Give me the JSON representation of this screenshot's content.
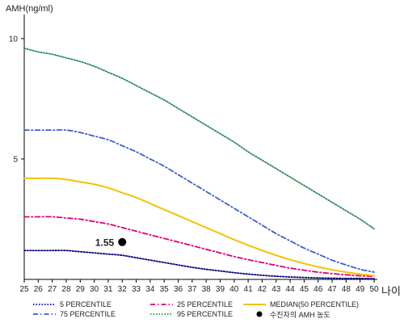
{
  "chart_data": {
    "type": "line",
    "ylabel": "AMH(ng/ml)",
    "xlabel": "나이",
    "x": [
      25,
      26,
      27,
      28,
      29,
      30,
      31,
      32,
      33,
      34,
      35,
      36,
      37,
      38,
      39,
      40,
      41,
      42,
      43,
      44,
      45,
      46,
      47,
      48,
      49,
      50
    ],
    "x_tick_labels": [
      "25",
      "26",
      "27",
      "28",
      "29",
      "30",
      "31",
      "32",
      "33",
      "34",
      "35",
      "36",
      "37",
      "38",
      "39",
      "40",
      "41",
      "42",
      "43",
      "44",
      "45",
      "46",
      "47",
      "48",
      "49",
      "50"
    ],
    "y_ticks": [
      5,
      10
    ],
    "y_tick_labels": [
      "5",
      "10"
    ],
    "xlim": [
      25,
      50
    ],
    "ylim": [
      0,
      11
    ],
    "grid": false,
    "legend_position": "bottom",
    "series": [
      {
        "name": "5 PERCENTILE",
        "color": "#000080",
        "dash": "dotted",
        "values": [
          1.2,
          1.2,
          1.2,
          1.2,
          1.15,
          1.1,
          1.05,
          1.0,
          0.9,
          0.8,
          0.7,
          0.6,
          0.5,
          0.42,
          0.35,
          0.28,
          0.22,
          0.17,
          0.13,
          0.1,
          0.08,
          0.06,
          0.05,
          0.04,
          0.04,
          0.03
        ]
      },
      {
        "name": "25 PERCENTILE",
        "color": "#e0007a",
        "dash": "dashdot",
        "values": [
          2.6,
          2.6,
          2.6,
          2.55,
          2.5,
          2.4,
          2.3,
          2.15,
          2.0,
          1.85,
          1.7,
          1.55,
          1.4,
          1.25,
          1.1,
          0.95,
          0.82,
          0.7,
          0.58,
          0.47,
          0.38,
          0.3,
          0.24,
          0.19,
          0.15,
          0.12
        ]
      },
      {
        "name": "MEDIAN(50 PERCENTILE)",
        "color": "#f2c200",
        "dash": "solid",
        "values": [
          4.2,
          4.2,
          4.2,
          4.15,
          4.05,
          3.95,
          3.8,
          3.6,
          3.4,
          3.15,
          2.9,
          2.65,
          2.4,
          2.15,
          1.9,
          1.65,
          1.42,
          1.2,
          1.0,
          0.82,
          0.66,
          0.52,
          0.4,
          0.3,
          0.22,
          0.15
        ]
      },
      {
        "name": "75 PERCENTILE",
        "color": "#3a5fcd",
        "dash": "dashdot",
        "values": [
          6.2,
          6.2,
          6.2,
          6.2,
          6.1,
          5.95,
          5.8,
          5.55,
          5.3,
          5.0,
          4.7,
          4.35,
          4.0,
          3.65,
          3.3,
          2.95,
          2.6,
          2.25,
          1.9,
          1.6,
          1.3,
          1.05,
          0.8,
          0.6,
          0.42,
          0.3
        ]
      },
      {
        "name": "95 PERCENTILE",
        "color": "#2e8b57",
        "dash": "dotted",
        "values": [
          9.6,
          9.45,
          9.35,
          9.2,
          9.05,
          8.85,
          8.6,
          8.35,
          8.05,
          7.75,
          7.45,
          7.1,
          6.75,
          6.4,
          6.05,
          5.7,
          5.3,
          4.95,
          4.6,
          4.25,
          3.9,
          3.55,
          3.2,
          2.85,
          2.5,
          2.1
        ]
      }
    ],
    "highlight_point": {
      "name": "수진자의 AMH 농도",
      "x": 32,
      "y": 1.55,
      "label": "1.55",
      "color": "#000000"
    }
  }
}
